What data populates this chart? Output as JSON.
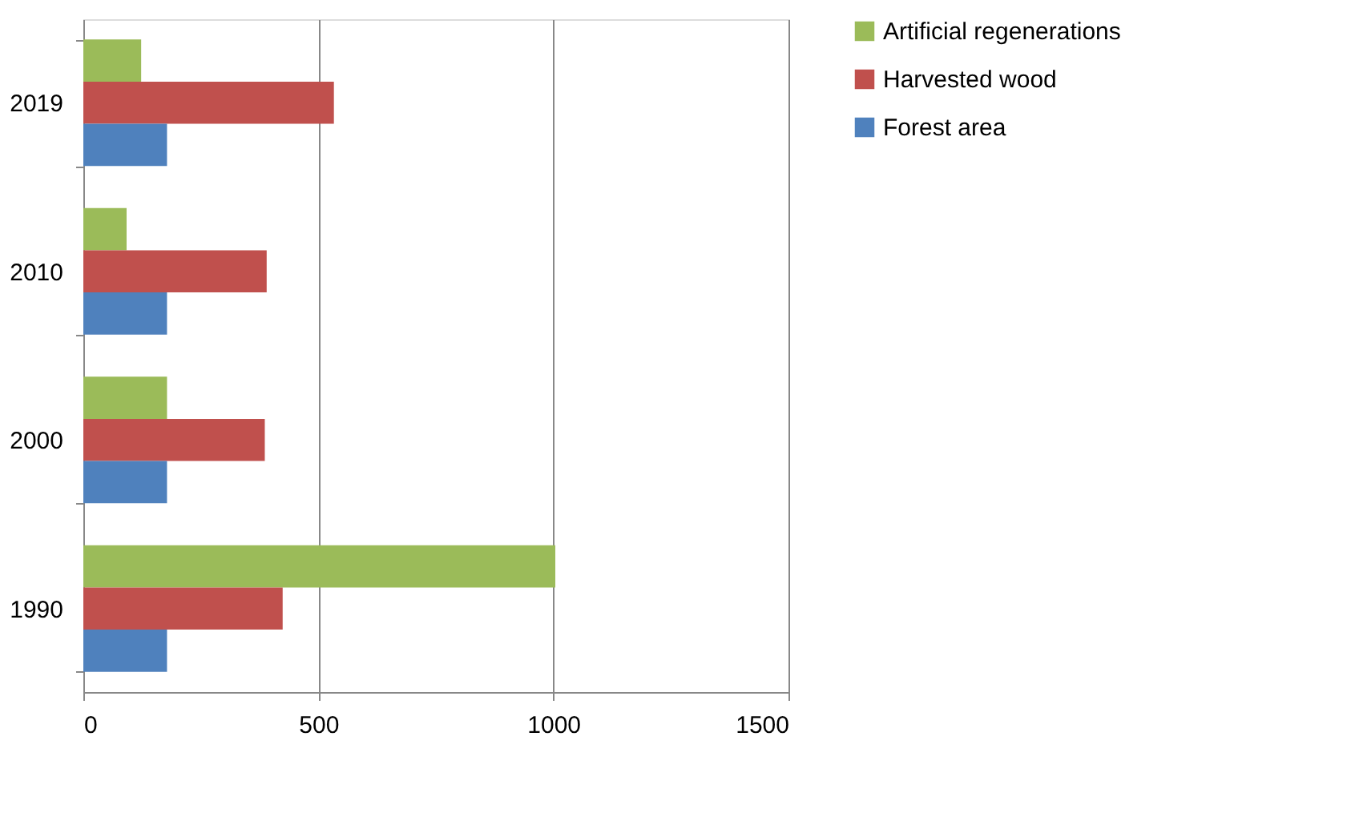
{
  "chart_data": {
    "type": "bar",
    "orientation": "horizontal",
    "categories": [
      "2019",
      "2010",
      "2000",
      "1990"
    ],
    "series": [
      {
        "name": "Artificial regenerations",
        "color": "#9bbb59",
        "values": [
          123,
          92,
          178,
          1004
        ]
      },
      {
        "name": "Harvested wood",
        "color": "#c0504d",
        "values": [
          533,
          390,
          386,
          424
        ]
      },
      {
        "name": "Forest area",
        "color": "#4f81bd",
        "values": [
          178,
          178,
          178,
          178
        ]
      }
    ],
    "xlim": [
      0,
      1500
    ],
    "xticks": [
      0,
      500,
      1000,
      1500
    ],
    "grid": "x",
    "legend": "right"
  }
}
